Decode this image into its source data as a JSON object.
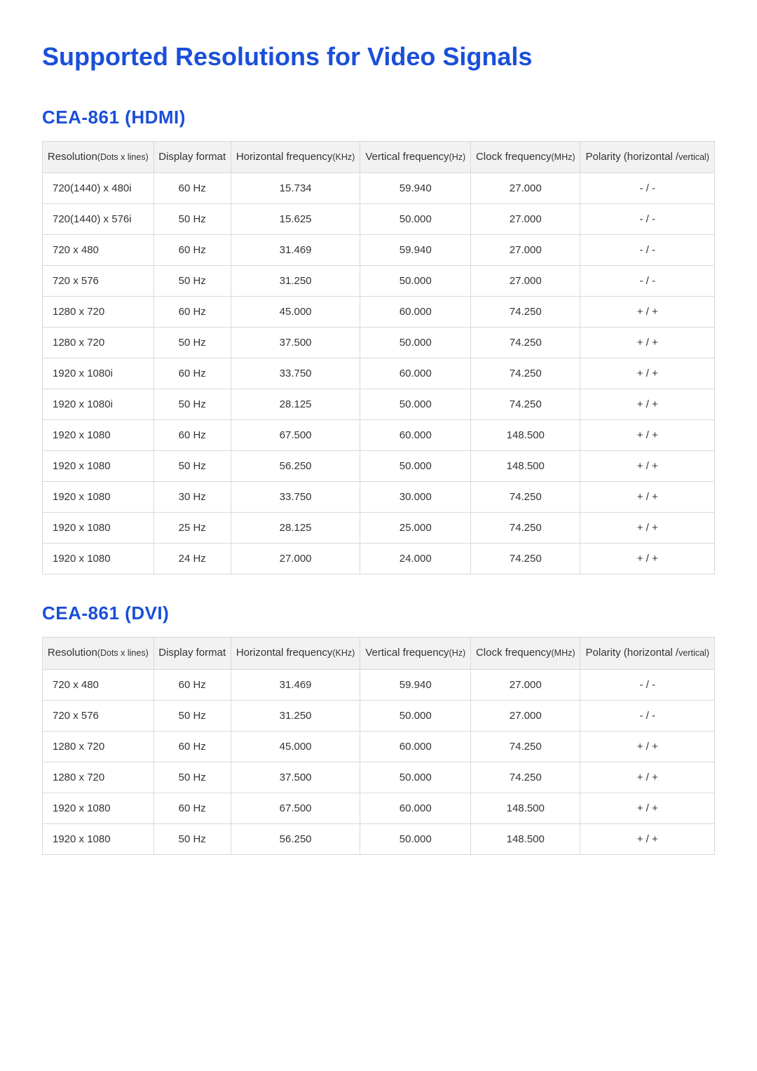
{
  "colors": {
    "title": "#1a4fd8",
    "subtitle": "#1a4fd8",
    "table_border": "#d9d9d9",
    "header_bg": "#f2f2f2",
    "body_bg": "#ffffff",
    "text": "#333333"
  },
  "typography": {
    "title_fontsize_pt": 27,
    "subtitle_fontsize_pt": 20,
    "table_fontsize_pt": 11
  },
  "page_title": "Supported Resolutions for Video Signals",
  "columns": [
    {
      "line1": "Resolution",
      "line2": "(Dots x lines)"
    },
    {
      "line1": "Display format",
      "line2": ""
    },
    {
      "line1": "Horizontal frequency",
      "line2": "(KHz)"
    },
    {
      "line1": "Vertical frequency",
      "line2": "(Hz)"
    },
    {
      "line1": "Clock frequency",
      "line2": "(MHz)"
    },
    {
      "line1": "Polarity (horizontal /",
      "line2": "vertical)"
    }
  ],
  "sections": [
    {
      "title": "CEA-861 (HDMI)",
      "rows": [
        [
          "720(1440) x 480i",
          "60 Hz",
          "15.734",
          "59.940",
          "27.000",
          "- / -"
        ],
        [
          "720(1440) x 576i",
          "50 Hz",
          "15.625",
          "50.000",
          "27.000",
          "- / -"
        ],
        [
          "720 x 480",
          "60 Hz",
          "31.469",
          "59.940",
          "27.000",
          "- / -"
        ],
        [
          "720 x 576",
          "50 Hz",
          "31.250",
          "50.000",
          "27.000",
          "- / -"
        ],
        [
          "1280 x 720",
          "60 Hz",
          "45.000",
          "60.000",
          "74.250",
          "+ / +"
        ],
        [
          "1280 x 720",
          "50 Hz",
          "37.500",
          "50.000",
          "74.250",
          "+ / +"
        ],
        [
          "1920 x 1080i",
          "60 Hz",
          "33.750",
          "60.000",
          "74.250",
          "+ / +"
        ],
        [
          "1920 x 1080i",
          "50 Hz",
          "28.125",
          "50.000",
          "74.250",
          "+ / +"
        ],
        [
          "1920 x 1080",
          "60 Hz",
          "67.500",
          "60.000",
          "148.500",
          "+ / +"
        ],
        [
          "1920 x 1080",
          "50 Hz",
          "56.250",
          "50.000",
          "148.500",
          "+ / +"
        ],
        [
          "1920 x 1080",
          "30 Hz",
          "33.750",
          "30.000",
          "74.250",
          "+ / +"
        ],
        [
          "1920 x 1080",
          "25 Hz",
          "28.125",
          "25.000",
          "74.250",
          "+ / +"
        ],
        [
          "1920 x 1080",
          "24 Hz",
          "27.000",
          "24.000",
          "74.250",
          "+ / +"
        ]
      ]
    },
    {
      "title": "CEA-861 (DVI)",
      "rows": [
        [
          "720 x 480",
          "60 Hz",
          "31.469",
          "59.940",
          "27.000",
          "- / -"
        ],
        [
          "720 x 576",
          "50 Hz",
          "31.250",
          "50.000",
          "27.000",
          "- / -"
        ],
        [
          "1280 x 720",
          "60 Hz",
          "45.000",
          "60.000",
          "74.250",
          "+ / +"
        ],
        [
          "1280 x 720",
          "50 Hz",
          "37.500",
          "50.000",
          "74.250",
          "+ / +"
        ],
        [
          "1920 x 1080",
          "60 Hz",
          "67.500",
          "60.000",
          "148.500",
          "+ / +"
        ],
        [
          "1920 x 1080",
          "50 Hz",
          "56.250",
          "50.000",
          "148.500",
          "+ / +"
        ]
      ]
    }
  ]
}
